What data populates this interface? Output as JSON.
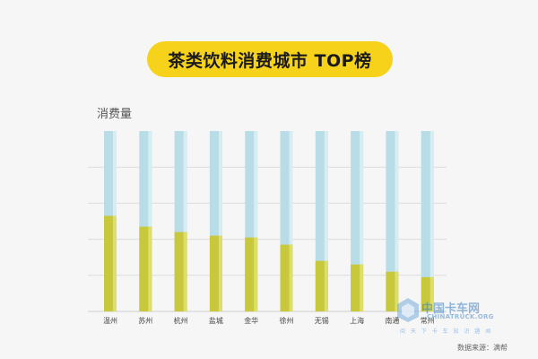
{
  "chart_data": {
    "type": "bar",
    "title": "茶类饮料消费城市 TOP榜",
    "ylabel": "消费量",
    "categories": [
      "温州",
      "苏州",
      "杭州",
      "盐城",
      "金华",
      "徐州",
      "无锡",
      "上海",
      "南通",
      "常州"
    ],
    "values": [
      53,
      47,
      44,
      42,
      41,
      37,
      28,
      26,
      22,
      19
    ],
    "ylim": [
      0,
      100
    ],
    "grid": true,
    "colors": {
      "track": "#b9dde6",
      "fill": "#c8c83c",
      "title_bg": "#f7d21b"
    }
  },
  "source": "数据来源：满帮",
  "watermark": {
    "name": "中国卡车网",
    "domain": "CHINATRUCK.ORG",
    "tagline": "阅 天 下 卡 车 知 识 趣 闻"
  }
}
